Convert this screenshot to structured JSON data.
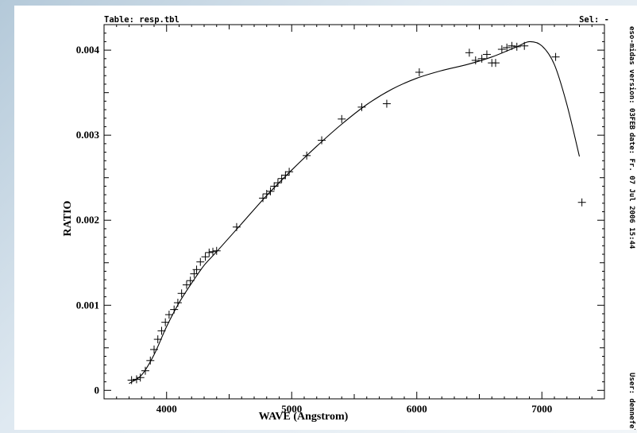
{
  "header": {
    "table": "Table: resp.tbl",
    "sel": "Sel: -"
  },
  "sidebar": {
    "version": "eso-midas version: 03FEB",
    "date": "date: Fr. 07 Jul 2006 15:44",
    "user": "User: dennefel"
  },
  "chart_data": {
    "type": "scatter",
    "xlabel": "WAVE (Angstrom)",
    "ylabel": "RATIO",
    "xlim": [
      3500,
      7500
    ],
    "ylim": [
      -0.0001,
      0.0043
    ],
    "xticks": [
      4000,
      5000,
      6000,
      7000
    ],
    "xtick_labels": [
      "4000",
      "5000",
      "6000",
      "7000"
    ],
    "yticks": [
      0,
      0.001,
      0.002,
      0.003,
      0.004
    ],
    "ytick_labels": [
      "0",
      "0.001",
      "0.002",
      "0.003",
      "0.004"
    ],
    "grid": false,
    "series": [
      {
        "kind": "points",
        "marker": "plus",
        "x": [
          3720,
          3760,
          3790,
          3830,
          3870,
          3900,
          3930,
          3960,
          3990,
          4020,
          4060,
          4090,
          4120,
          4160,
          4190,
          4220,
          4240,
          4270,
          4310,
          4340,
          4370,
          4400,
          4560,
          4770,
          4800,
          4830,
          4860,
          4890,
          4920,
          4950,
          4980,
          5120,
          5240,
          5400,
          5560,
          5760,
          6020,
          6420,
          6470,
          6520,
          6560,
          6600,
          6630,
          6680,
          6720,
          6760,
          6800,
          6860,
          7110,
          7320
        ],
        "y": [
          0.00012,
          0.00013,
          0.00015,
          0.00023,
          0.00035,
          0.00048,
          0.0006,
          0.0007,
          0.0008,
          0.00089,
          0.00095,
          0.00103,
          0.00114,
          0.00124,
          0.00129,
          0.00137,
          0.00142,
          0.00151,
          0.00157,
          0.00162,
          0.00163,
          0.00164,
          0.00192,
          0.00226,
          0.00231,
          0.00234,
          0.0024,
          0.00244,
          0.00249,
          0.00253,
          0.00257,
          0.00276,
          0.00294,
          0.00319,
          0.00333,
          0.00337,
          0.00374,
          0.00397,
          0.00388,
          0.0039,
          0.00395,
          0.00385,
          0.00385,
          0.00401,
          0.00403,
          0.00405,
          0.00404,
          0.00405,
          0.00392,
          0.00221
        ]
      },
      {
        "kind": "line",
        "x": [
          3700,
          3800,
          3900,
          4000,
          4100,
          4200,
          4300,
          4400,
          4600,
          4800,
          5000,
          5200,
          5400,
          5600,
          5800,
          6000,
          6200,
          6400,
          6600,
          6800,
          6900,
          7000,
          7100,
          7200,
          7300
        ],
        "y": [
          8e-05,
          0.00018,
          0.00042,
          0.00075,
          0.00103,
          0.00126,
          0.00147,
          0.00163,
          0.00196,
          0.00229,
          0.00259,
          0.00287,
          0.00313,
          0.00336,
          0.00354,
          0.00367,
          0.00376,
          0.00383,
          0.00392,
          0.00404,
          0.0041,
          0.00405,
          0.00383,
          0.00336,
          0.00275
        ]
      }
    ]
  }
}
